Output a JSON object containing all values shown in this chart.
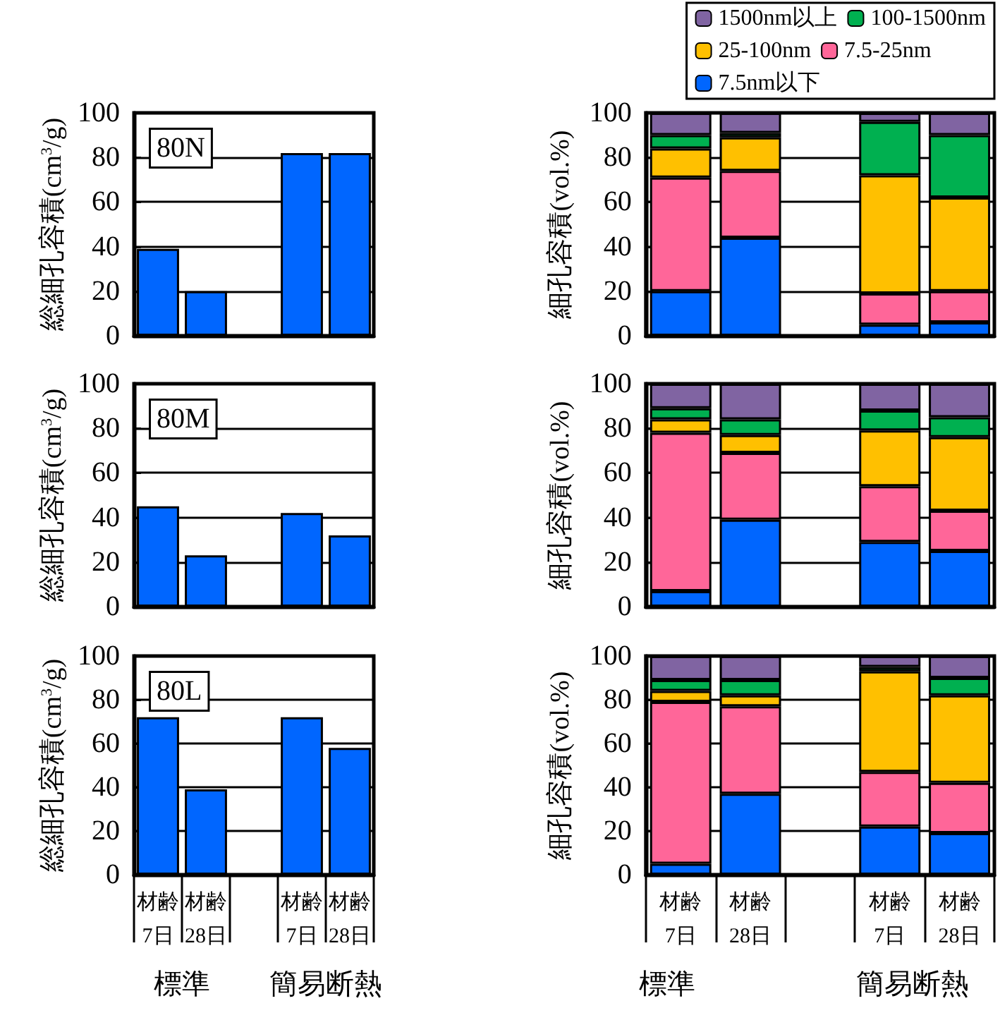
{
  "chart_data": [
    {
      "type": "bar",
      "ylabel": "総細孔容積(cm$^{3}$/g)",
      "categories": [
        "材齢7日",
        "材齢28日",
        null,
        "材齢7日",
        "材齢28日"
      ],
      "values": [
        39,
        20,
        null,
        82,
        82
      ],
      "color": "#0066ff",
      "ylim": [
        0,
        100
      ],
      "yticks": [
        0,
        20,
        40,
        60,
        80,
        100
      ],
      "grid": "y",
      "tick_labels": "y",
      "annotations": [
        "80N"
      ]
    },
    {
      "type": "bar",
      "stacked": true,
      "ylabel": "細孔容積(vol.%)",
      "categories": [
        "材齢7日",
        "材齢28日",
        null,
        "材齢7日",
        "材齢28日"
      ],
      "series": [
        {
          "name": "7.5nm以下",
          "color": "#0066ff",
          "values": [
            20,
            44,
            null,
            5,
            6
          ]
        },
        {
          "name": "7.5-25nm",
          "color": "#ff6699",
          "values": [
            51,
            30,
            null,
            14,
            14
          ]
        },
        {
          "name": "25-100nm",
          "color": "#ffc000",
          "values": [
            13,
            15,
            null,
            53,
            42
          ]
        },
        {
          "name": "100-1500nm",
          "color": "#00b050",
          "values": [
            6,
            2,
            null,
            24,
            28
          ]
        },
        {
          "name": "1500nm以上",
          "color": "#8064a2",
          "values": [
            10,
            9,
            null,
            4,
            10
          ]
        }
      ],
      "ylim": [
        0,
        100
      ],
      "yticks": [
        0,
        20,
        40,
        60,
        80,
        100
      ],
      "grid": "y",
      "tick_labels": "y",
      "legend": "top right"
    },
    {
      "type": "bar",
      "ylabel": "総細孔容積(cm$^{3}$/g)",
      "categories": [
        "材齢7日",
        "材齢28日",
        null,
        "材齢7日",
        "材齢28日"
      ],
      "values": [
        45,
        23,
        null,
        42,
        32
      ],
      "color": "#0066ff",
      "ylim": [
        0,
        100
      ],
      "yticks": [
        0,
        20,
        40,
        60,
        80,
        100
      ],
      "grid": "y",
      "tick_labels": "y",
      "annotations": [
        "80M"
      ]
    },
    {
      "type": "bar",
      "stacked": true,
      "ylabel": "細孔容積(vol.%)",
      "categories": [
        "材齢7日",
        "材齢28日",
        null,
        "材齢7日",
        "材齢28日"
      ],
      "series": [
        {
          "color": "#0066ff",
          "values": [
            7,
            39,
            null,
            29,
            25
          ]
        },
        {
          "color": "#ff6699",
          "values": [
            71,
            30,
            null,
            25,
            18
          ]
        },
        {
          "color": "#ffc000",
          "values": [
            6,
            8,
            null,
            25,
            33
          ]
        },
        {
          "color": "#00b050",
          "values": [
            5,
            7,
            null,
            9,
            9
          ]
        },
        {
          "color": "#8064a2",
          "values": [
            11,
            16,
            null,
            12,
            15
          ]
        }
      ],
      "ylim": [
        0,
        100
      ],
      "yticks": [
        0,
        20,
        40,
        60,
        80,
        100
      ],
      "grid": "y",
      "tick_labels": "y"
    },
    {
      "type": "bar",
      "ylabel": "総細孔容積(cm$^{3}$/g)",
      "categories": [
        "材齢7日",
        "材齢28日",
        null,
        "材齢7日",
        "材齢28日"
      ],
      "values": [
        72,
        39,
        null,
        72,
        58
      ],
      "color": "#0066ff",
      "ylim": [
        0,
        100
      ],
      "yticks": [
        0,
        20,
        40,
        60,
        80,
        100
      ],
      "grid": "y",
      "annotations": [
        "80L",
        "標準",
        "簡易断熱"
      ]
    },
    {
      "type": "bar",
      "stacked": true,
      "ylabel": "細孔容積(vol.%)",
      "categories": [
        "材齢7日",
        "材齢28日",
        null,
        "材齢7日",
        "材齢28日"
      ],
      "series": [
        {
          "color": "#0066ff",
          "values": [
            5,
            37,
            null,
            22,
            19
          ]
        },
        {
          "color": "#ff6699",
          "values": [
            74,
            40,
            null,
            25,
            23
          ]
        },
        {
          "color": "#ffc000",
          "values": [
            5,
            5,
            null,
            46,
            40
          ]
        },
        {
          "color": "#00b050",
          "values": [
            5,
            7,
            null,
            2,
            8
          ]
        },
        {
          "color": "#8064a2",
          "values": [
            11,
            11,
            null,
            5,
            10
          ]
        }
      ],
      "ylim": [
        0,
        100
      ],
      "yticks": [
        0,
        20,
        40,
        60,
        80,
        100
      ],
      "grid": "y",
      "annotations": [
        "標準",
        "簡易断熱"
      ]
    }
  ]
}
